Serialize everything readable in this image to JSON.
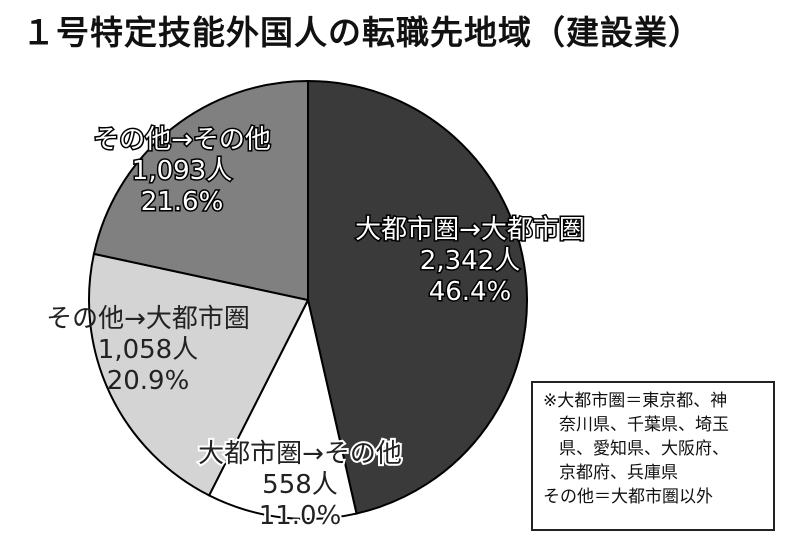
{
  "title": "１号特定技能外国人の転職先地域（建設業）",
  "chart_data": {
    "type": "pie",
    "title": "１号特定技能外国人の転職先地域（建設業）",
    "slices": [
      {
        "label": "大都市圏→大都市圏",
        "count": "2,342人",
        "value": 46.4,
        "percent": "46.4%",
        "color": "#3a3a3a"
      },
      {
        "label": "大都市圏→その他",
        "count": "558人",
        "value": 11.0,
        "percent": "11.0%",
        "color": "#ffffff"
      },
      {
        "label": "その他→大都市圏",
        "count": "1,058人",
        "value": 20.9,
        "percent": "20.9%",
        "color": "#d4d4d4"
      },
      {
        "label": "その他→その他",
        "count": "1,093人",
        "value": 21.6,
        "percent": "21.6%",
        "color": "#808080"
      }
    ],
    "start": "12 o'clock",
    "direction": "clockwise"
  },
  "note": {
    "lines": [
      "※大都市圏＝東京都、神",
      "奈川県、千葉県、埼玉",
      "県、愛知県、大阪府、",
      "京都府、兵庫県",
      "その他＝大都市圏以外"
    ]
  }
}
